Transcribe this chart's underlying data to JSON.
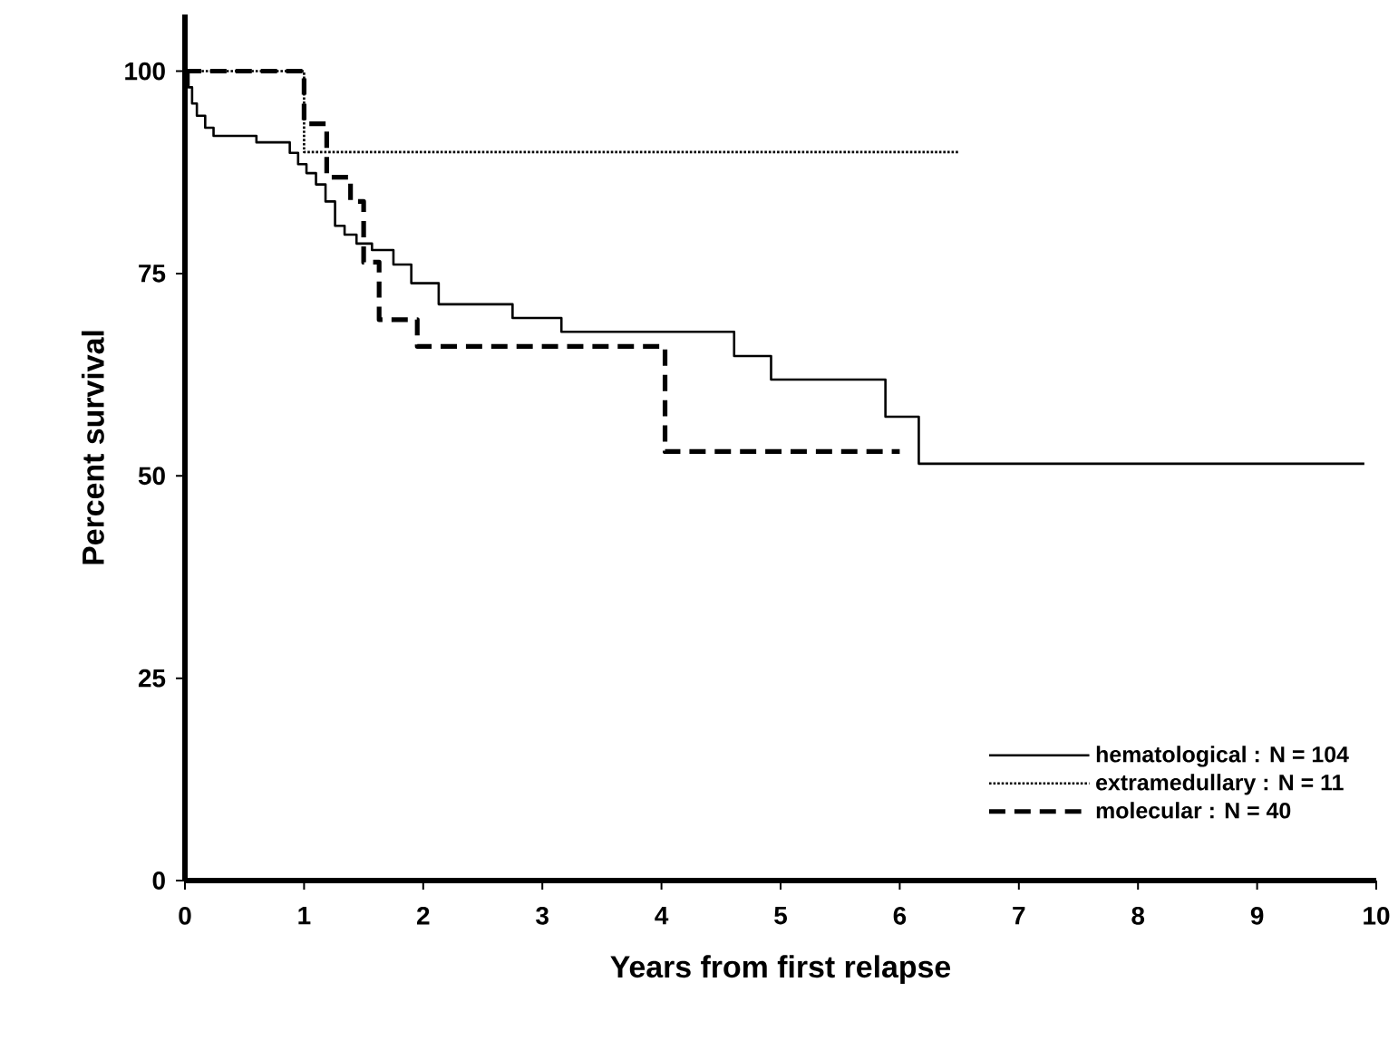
{
  "chart_data": {
    "type": "step",
    "xlabel": "Years from first relapse",
    "ylabel": "Percent survival",
    "xlim": [
      0,
      10
    ],
    "ylim": [
      0,
      107
    ],
    "xticks": [
      0,
      1,
      2,
      3,
      4,
      5,
      6,
      7,
      8,
      9,
      10
    ],
    "yticks": [
      0,
      25,
      50,
      75,
      100
    ],
    "grid": false,
    "legend": "bottom right",
    "marker": "none",
    "series": [
      {
        "name": "hematological : N = 104",
        "color": "#000000",
        "line_style": "solid",
        "x": [
          0,
          0.03,
          0.06,
          0.1,
          0.17,
          0.24,
          0.6,
          0.88,
          0.95,
          1.02,
          1.1,
          1.18,
          1.26,
          1.34,
          1.44,
          1.57,
          1.75,
          1.9,
          2.13,
          2.75,
          3.16,
          4.61,
          4.92,
          5.88,
          6.16,
          9.9
        ],
        "values": [
          100,
          98,
          96,
          94.5,
          93,
          92,
          91.2,
          89.9,
          88.5,
          87.4,
          86,
          83.9,
          80.9,
          79.8,
          78.7,
          77.9,
          76.1,
          73.8,
          71.2,
          69.5,
          67.8,
          64.8,
          61.9,
          57.3,
          51.5,
          51.5
        ]
      },
      {
        "name": "extramedullary :  N = 11",
        "color": "#000000",
        "line_style": "dotted",
        "x": [
          0,
          1.0,
          6.5
        ],
        "values": [
          100,
          90,
          90
        ]
      },
      {
        "name": "molecular :          N = 40",
        "color": "#000000",
        "line_style": "dashed",
        "x": [
          0,
          1.0,
          1.19,
          1.39,
          1.5,
          1.63,
          1.95,
          4.03,
          6.0
        ],
        "values": [
          100,
          93.5,
          86.9,
          83.9,
          76.4,
          69.3,
          66,
          53,
          53
        ]
      }
    ]
  }
}
